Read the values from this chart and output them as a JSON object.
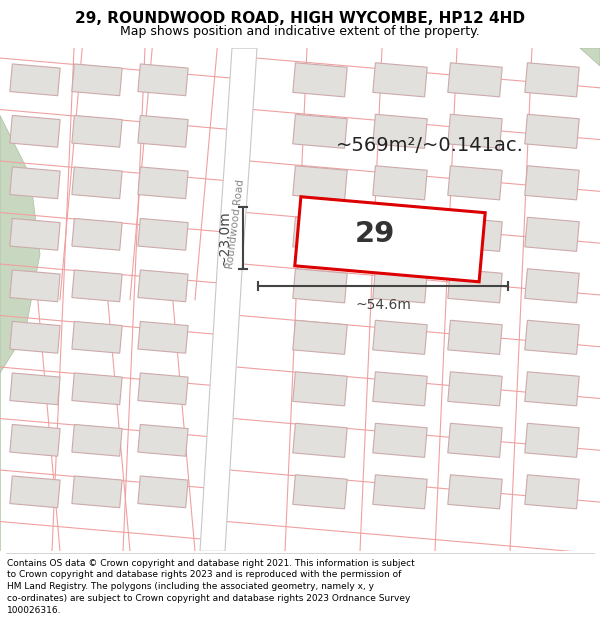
{
  "title": "29, ROUNDWOOD ROAD, HIGH WYCOMBE, HP12 4HD",
  "subtitle": "Map shows position and indicative extent of the property.",
  "footer": "Contains OS data © Crown copyright and database right 2021. This information is subject to Crown copyright and database rights 2023 and is reproduced with the permission of HM Land Registry. The polygons (including the associated geometry, namely x, y co-ordinates) are subject to Crown copyright and database rights 2023 Ordnance Survey 100026316.",
  "map_bg": "#f7f5f2",
  "road_fill": "#ffffff",
  "road_edge_color": "#c8c8c8",
  "parcel_line_color": "#f0a0a0",
  "building_fill": "#e2e0dc",
  "building_outline": "#ccaaaa",
  "property_fill": "#ffffff",
  "property_outline": "#dd0000",
  "green_fill": "#c8d8c0",
  "green_outline": "#a8c0a0",
  "dim_color": "#444444",
  "text_color": "#222222",
  "road_label_color": "#888888",
  "area_label": "~569m²/~0.141ac.",
  "number_label": "29",
  "dim_width": "~54.6m",
  "dim_height": "~23.0m",
  "road_label": "Roundwood Road",
  "footer_fontsize": 6.5,
  "title_fontsize": 11,
  "subtitle_fontsize": 9
}
